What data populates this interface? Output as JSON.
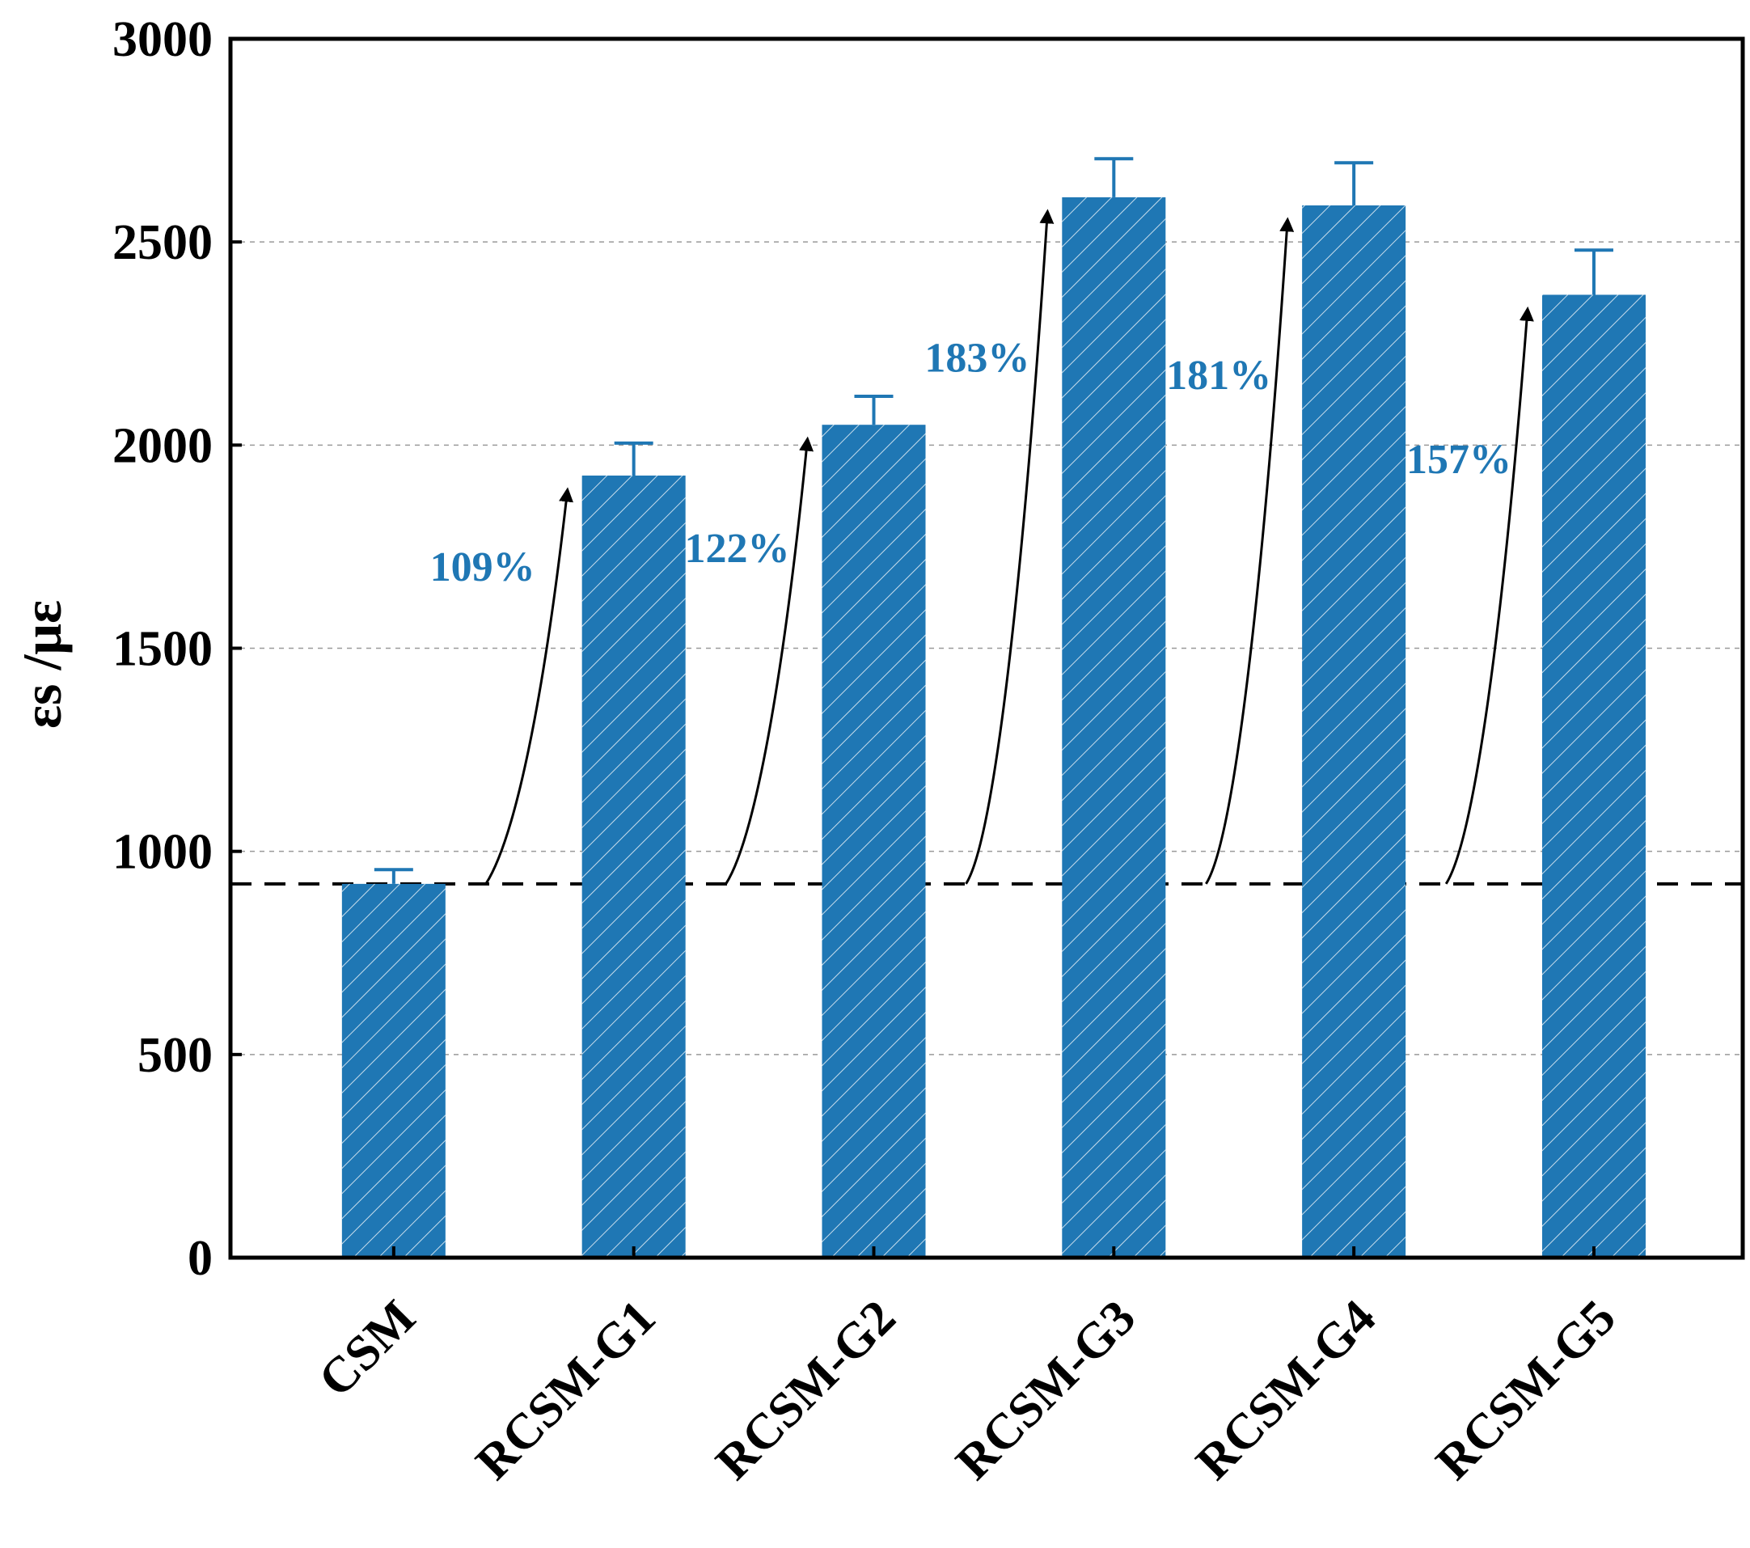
{
  "chart_data": {
    "type": "bar",
    "title": "",
    "ylabel": "εs /με",
    "xlabel": "",
    "ylim": [
      0,
      3000
    ],
    "yticks": [
      0,
      500,
      1000,
      1500,
      2000,
      2500,
      3000
    ],
    "ytick_labels": [
      "0",
      "500",
      "1000",
      "1500",
      "2000",
      "2500",
      "3000"
    ],
    "grid": "horizontal dashed",
    "categories": [
      "CSM",
      "RCSM-G1",
      "RCSM-G2",
      "RCSM-G3",
      "RCSM-G4",
      "RCSM-G5"
    ],
    "values": [
      920,
      1925,
      2050,
      2610,
      2590,
      2370
    ],
    "errors": [
      35,
      80,
      70,
      95,
      105,
      110
    ],
    "baseline": 920,
    "increases": [
      "109%",
      "122%",
      "183%",
      "181%",
      "157%"
    ],
    "bar_color": "#1f77b4",
    "bar_pattern": "diagonal hatch",
    "label_color": "#1f77b4"
  }
}
